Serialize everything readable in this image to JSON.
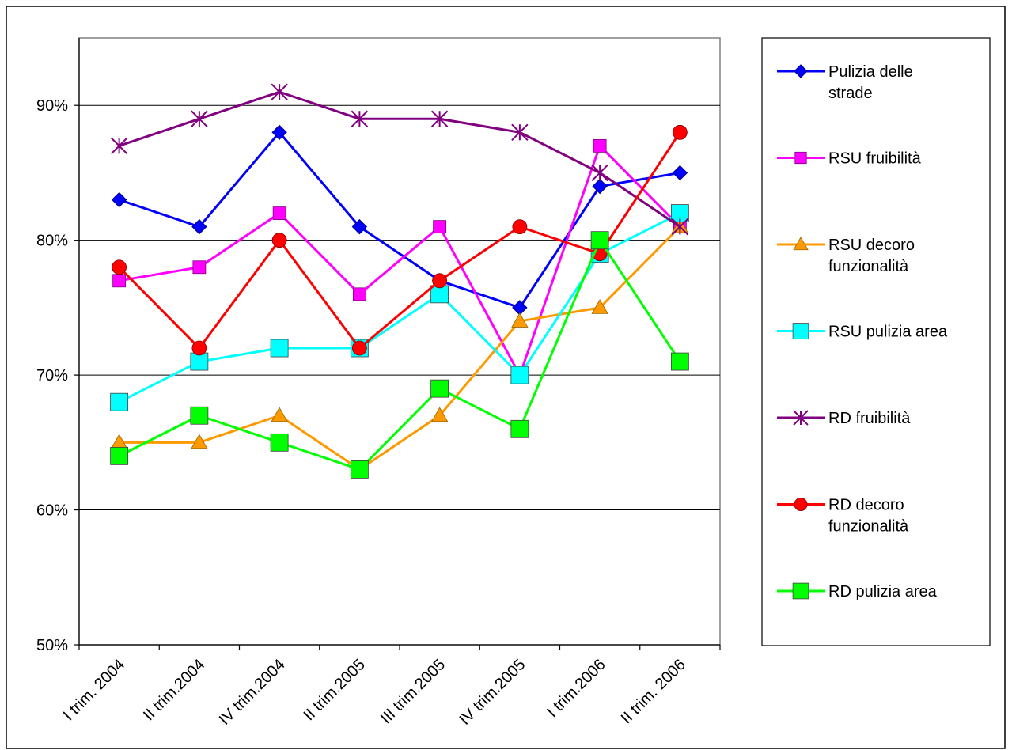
{
  "chart_data": {
    "type": "line",
    "title": "",
    "xlabel": "",
    "ylabel": "",
    "ylim": [
      50,
      95
    ],
    "yticks": [
      50,
      60,
      70,
      80,
      90
    ],
    "ytick_labels": [
      "50%",
      "60%",
      "70%",
      "80%",
      "90%"
    ],
    "grid": "horizontal",
    "legend_position": "right",
    "categories": [
      "I trim. 2004",
      "II trim.2004",
      "IV trim.2004",
      "II trim.2005",
      "III trim.2005",
      "IV trim.2005",
      "I trim.2006",
      "II trim. 2006"
    ],
    "series": [
      {
        "name": "Pulizia delle strade",
        "legend_lines": [
          "Pulizia delle",
          "strade"
        ],
        "color": "#0000ff",
        "marker": "diamond",
        "values": [
          83,
          81,
          88,
          81,
          77,
          75,
          84,
          85
        ]
      },
      {
        "name": "RSU fruibilità",
        "legend_lines": [
          "RSU fruibilità"
        ],
        "color": "#ff00ff",
        "marker": "square-small",
        "values": [
          77,
          78,
          82,
          76,
          81,
          70,
          87,
          81
        ]
      },
      {
        "name": "RSU decoro funzionalità",
        "legend_lines": [
          "RSU decoro",
          "funzionalità"
        ],
        "color": "#ff9900",
        "marker": "triangle",
        "values": [
          65,
          65,
          67,
          63,
          67,
          74,
          75,
          81
        ]
      },
      {
        "name": "RSU pulizia area",
        "legend_lines": [
          "RSU pulizia area"
        ],
        "color": "#00ffff",
        "marker": "square",
        "values": [
          68,
          71,
          72,
          72,
          76,
          70,
          79,
          82
        ]
      },
      {
        "name": "RD fruibilità",
        "legend_lines": [
          "RD fruibilità"
        ],
        "color": "#800080",
        "marker": "asterisk",
        "values": [
          87,
          89,
          91,
          89,
          89,
          88,
          85,
          81
        ]
      },
      {
        "name": "RD decoro funzionalità",
        "legend_lines": [
          "RD decoro",
          "funzionalità"
        ],
        "color": "#ff0000",
        "marker": "circle",
        "values": [
          78,
          72,
          80,
          72,
          77,
          81,
          79,
          88
        ]
      },
      {
        "name": "RD pulizia area",
        "legend_lines": [
          "RD pulizia area"
        ],
        "color": "#00ff00",
        "marker": "square",
        "values": [
          64,
          67,
          65,
          63,
          69,
          66,
          80,
          71
        ]
      }
    ]
  }
}
